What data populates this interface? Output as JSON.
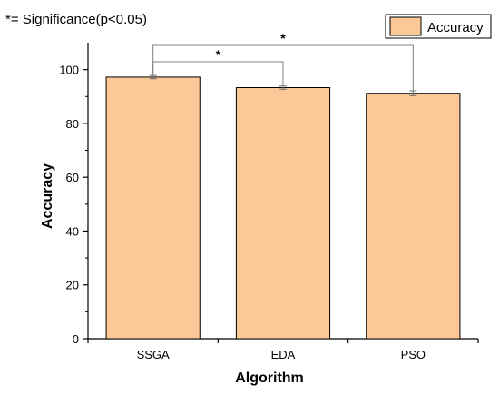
{
  "annotation": "*= Significance(p<0.05)",
  "chart_data": {
    "type": "bar",
    "categories": [
      "SSGA",
      "EDA",
      "PSO"
    ],
    "series": [
      {
        "name": "Accuracy",
        "values": [
          97.2,
          93.3,
          91.2
        ],
        "errors": [
          0.6,
          0.6,
          0.9
        ]
      }
    ],
    "xlabel": "Algorithm",
    "ylabel": "Accuracy",
    "ylim": [
      0,
      110
    ],
    "yticks": [
      0,
      20,
      40,
      60,
      80,
      100
    ],
    "legend": {
      "position": "top-right",
      "label": "Accuracy"
    },
    "significance": [
      {
        "from": "SSGA",
        "to": "PSO",
        "label": "*"
      },
      {
        "from": "SSGA",
        "to": "EDA",
        "label": "*"
      }
    ],
    "colors": {
      "bar_fill": "#fdc898",
      "bar_stroke": "#000000",
      "bracket": "#808080",
      "error": "#707070"
    },
    "grid": false
  }
}
